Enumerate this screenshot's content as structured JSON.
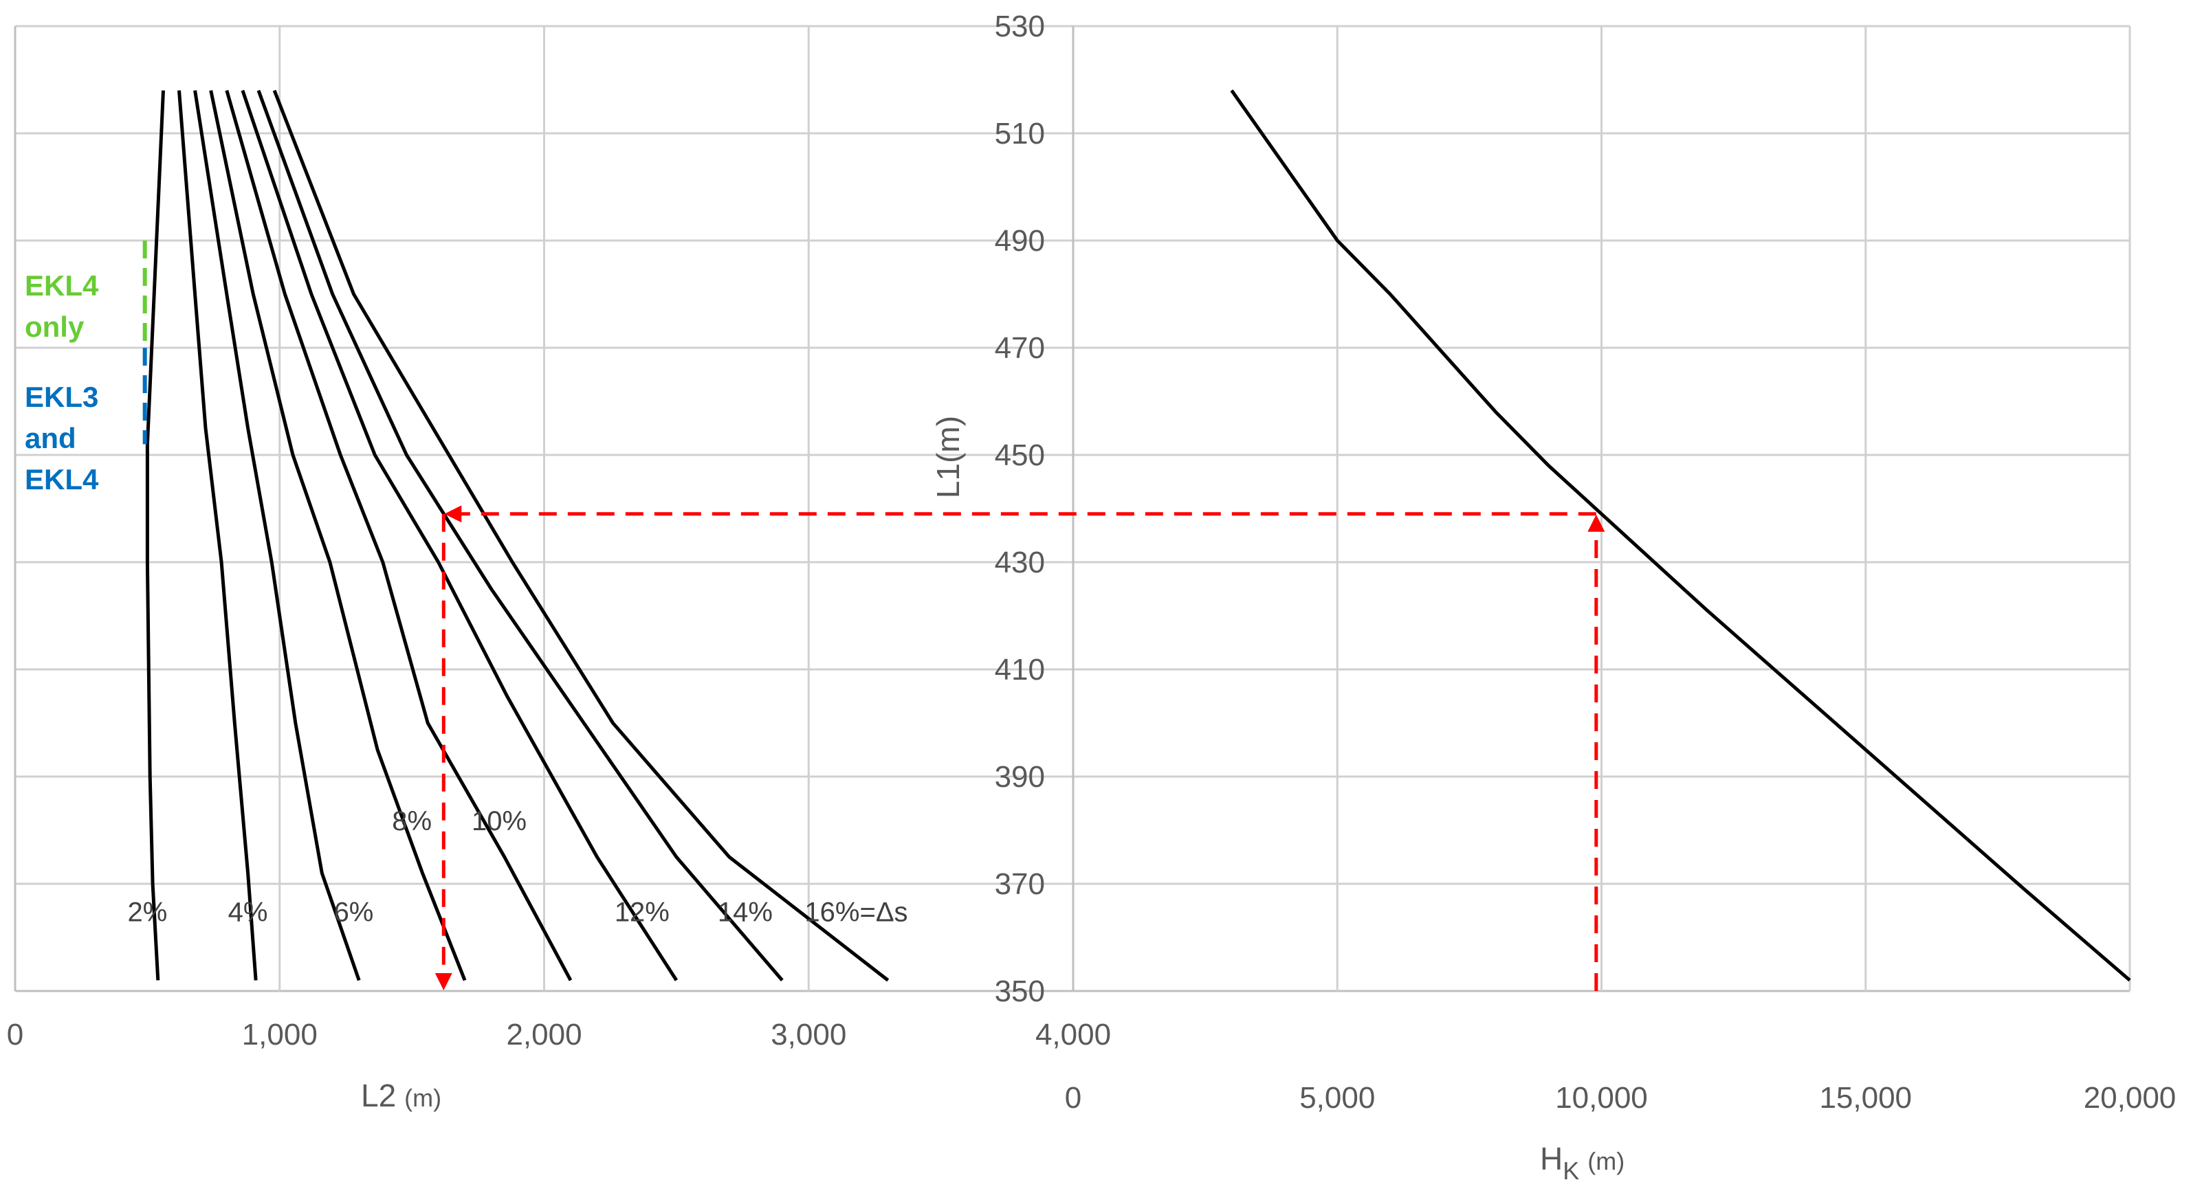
{
  "colors": {
    "curve": "#000000",
    "grid": "#d0d0d0",
    "guide": "#ff0000",
    "zone_ekl4": "#66cc33",
    "zone_ekl3": "#0070c0"
  },
  "chart_data": [
    {
      "type": "line",
      "xlabel": "L2",
      "xunit": "(m)",
      "xlim": [
        0,
        4000
      ],
      "xticks": [
        "0",
        "1,000",
        "2,000",
        "3,000",
        "4,000"
      ],
      "ylim": [
        350,
        530
      ],
      "grid": "both",
      "series": [
        {
          "name": "2%",
          "points": [
            [
              560,
              518
            ],
            [
              500,
              452
            ],
            [
              500,
              430
            ],
            [
              510,
              390
            ],
            [
              520,
              370
            ],
            [
              540,
              352
            ]
          ]
        },
        {
          "name": "4%",
          "points": [
            [
              620,
              518
            ],
            [
              680,
              480
            ],
            [
              720,
              455
            ],
            [
              780,
              430
            ],
            [
              830,
              400
            ],
            [
              880,
              372
            ],
            [
              910,
              352
            ]
          ]
        },
        {
          "name": "6%",
          "points": [
            [
              680,
              518
            ],
            [
              800,
              480
            ],
            [
              880,
              455
            ],
            [
              970,
              430
            ],
            [
              1060,
              400
            ],
            [
              1160,
              372
            ],
            [
              1300,
              352
            ]
          ]
        },
        {
          "name": "8%",
          "points": [
            [
              740,
              518
            ],
            [
              900,
              480
            ],
            [
              1050,
              450
            ],
            [
              1190,
              430
            ],
            [
              1370,
              395
            ],
            [
              1540,
              372
            ],
            [
              1700,
              352
            ]
          ]
        },
        {
          "name": "10%",
          "points": [
            [
              800,
              518
            ],
            [
              1020,
              480
            ],
            [
              1230,
              450
            ],
            [
              1390,
              430
            ],
            [
              1560,
              400
            ],
            [
              1850,
              375
            ],
            [
              2100,
              352
            ]
          ]
        },
        {
          "name": "12%",
          "points": [
            [
              860,
              518
            ],
            [
              1120,
              480
            ],
            [
              1360,
              450
            ],
            [
              1600,
              430
            ],
            [
              1860,
              405
            ],
            [
              2200,
              375
            ],
            [
              2500,
              352
            ]
          ]
        },
        {
          "name": "14%",
          "points": [
            [
              920,
              518
            ],
            [
              1200,
              480
            ],
            [
              1480,
              450
            ],
            [
              1800,
              425
            ],
            [
              2150,
              400
            ],
            [
              2500,
              375
            ],
            [
              2900,
              352
            ]
          ]
        },
        {
          "name": "16%=Δs",
          "points": [
            [
              980,
              518
            ],
            [
              1280,
              480
            ],
            [
              1580,
              455
            ],
            [
              1880,
              430
            ],
            [
              2260,
              400
            ],
            [
              2700,
              375
            ],
            [
              3300,
              352
            ]
          ]
        }
      ],
      "curve_labels": [
        {
          "text": "2%",
          "x": 500,
          "y": 363
        },
        {
          "text": "4%",
          "x": 880,
          "y": 363
        },
        {
          "text": "6%",
          "x": 1280,
          "y": 363
        },
        {
          "text": "8%",
          "x": 1500,
          "y": 380
        },
        {
          "text": "10%",
          "x": 1830,
          "y": 380
        },
        {
          "text": "12%",
          "x": 2370,
          "y": 363
        },
        {
          "text": "14%",
          "x": 2760,
          "y": 363
        },
        {
          "text": "16%=Δs",
          "x": 3180,
          "y": 363
        }
      ],
      "zones": [
        {
          "line1": "EKL4",
          "line2": "only",
          "y_from": 470,
          "y_to": 490,
          "x": 480,
          "color": "#66cc33"
        },
        {
          "line1": "EKL3",
          "line2": "and",
          "line3": "EKL4",
          "y_from": 452,
          "y_to": 470,
          "x": 480,
          "color": "#0070c0"
        }
      ],
      "guide": {
        "x": 1620,
        "y": 439
      }
    },
    {
      "type": "line",
      "xlabel": "H",
      "xlabel_sub": "K",
      "xunit": "(m)",
      "ylabel": "L1(m)",
      "xlim": [
        0,
        20000
      ],
      "xticks": [
        "0",
        "5,000",
        "10,000",
        "15,000",
        "20,000"
      ],
      "ylim": [
        350,
        530
      ],
      "yticks": [
        "350",
        "370",
        "390",
        "410",
        "430",
        "450",
        "470",
        "490",
        "510",
        "530"
      ],
      "grid": "both",
      "series": [
        {
          "name": "",
          "points": [
            [
              3000,
              518
            ],
            [
              5000,
              490
            ],
            [
              6000,
              480
            ],
            [
              7000,
              469
            ],
            [
              8000,
              458
            ],
            [
              9000,
              448
            ],
            [
              10000,
              439
            ],
            [
              12000,
              421
            ],
            [
              15000,
              395
            ],
            [
              18000,
              369
            ],
            [
              20000,
              352
            ]
          ]
        }
      ],
      "guide": {
        "x": 9900,
        "y": 439
      }
    }
  ]
}
